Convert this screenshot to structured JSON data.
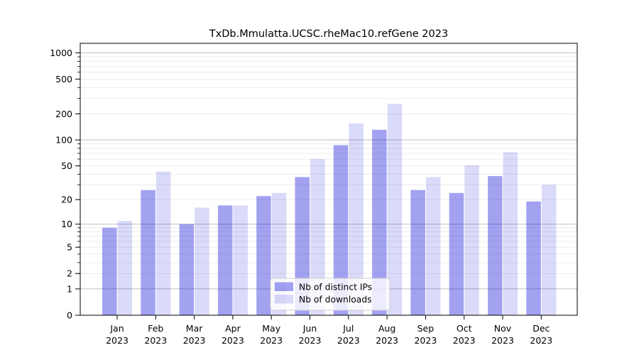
{
  "chart_data": {
    "type": "bar",
    "title": "TxDb.Mmulatta.UCSC.rheMac10.refGene 2023",
    "categories": [
      "Jan",
      "Feb",
      "Mar",
      "Apr",
      "May",
      "Jun",
      "Jul",
      "Aug",
      "Sep",
      "Oct",
      "Nov",
      "Dec"
    ],
    "category_year": "2023",
    "series": [
      {
        "name": "Nb of distinct IPs",
        "color_hex": "#a2a2f0",
        "fill": "rgba(30,30,220,0.41)",
        "values": [
          9,
          26,
          10,
          17,
          22,
          37,
          87,
          131,
          26,
          24,
          38,
          19
        ]
      },
      {
        "name": "Nb of downloads",
        "color_hex": "#dadaf8",
        "fill": "rgba(30,30,220,0.165)",
        "values": [
          11,
          43,
          16,
          17,
          24,
          60,
          155,
          260,
          37,
          51,
          72,
          30
        ]
      }
    ],
    "y_axis": {
      "scale": "log1p",
      "tick_values": [
        0,
        1,
        2,
        5,
        10,
        20,
        50,
        100,
        200,
        500,
        1000
      ],
      "tick_labels": [
        "0",
        "1",
        "2",
        "5",
        "10",
        "20",
        "50",
        "100",
        "200",
        "500",
        "1000"
      ],
      "major_grid_values": [
        1,
        10,
        100,
        1000
      ],
      "ylim": [
        0,
        1286
      ]
    },
    "legend": {
      "position": "lower-center",
      "entries": [
        "Nb of distinct IPs",
        "Nb of downloads"
      ]
    },
    "grid": {
      "major_color": "#bdbdbd",
      "minor_color": "#ececec"
    },
    "axis_color": "#000000",
    "background": "#ffffff"
  }
}
